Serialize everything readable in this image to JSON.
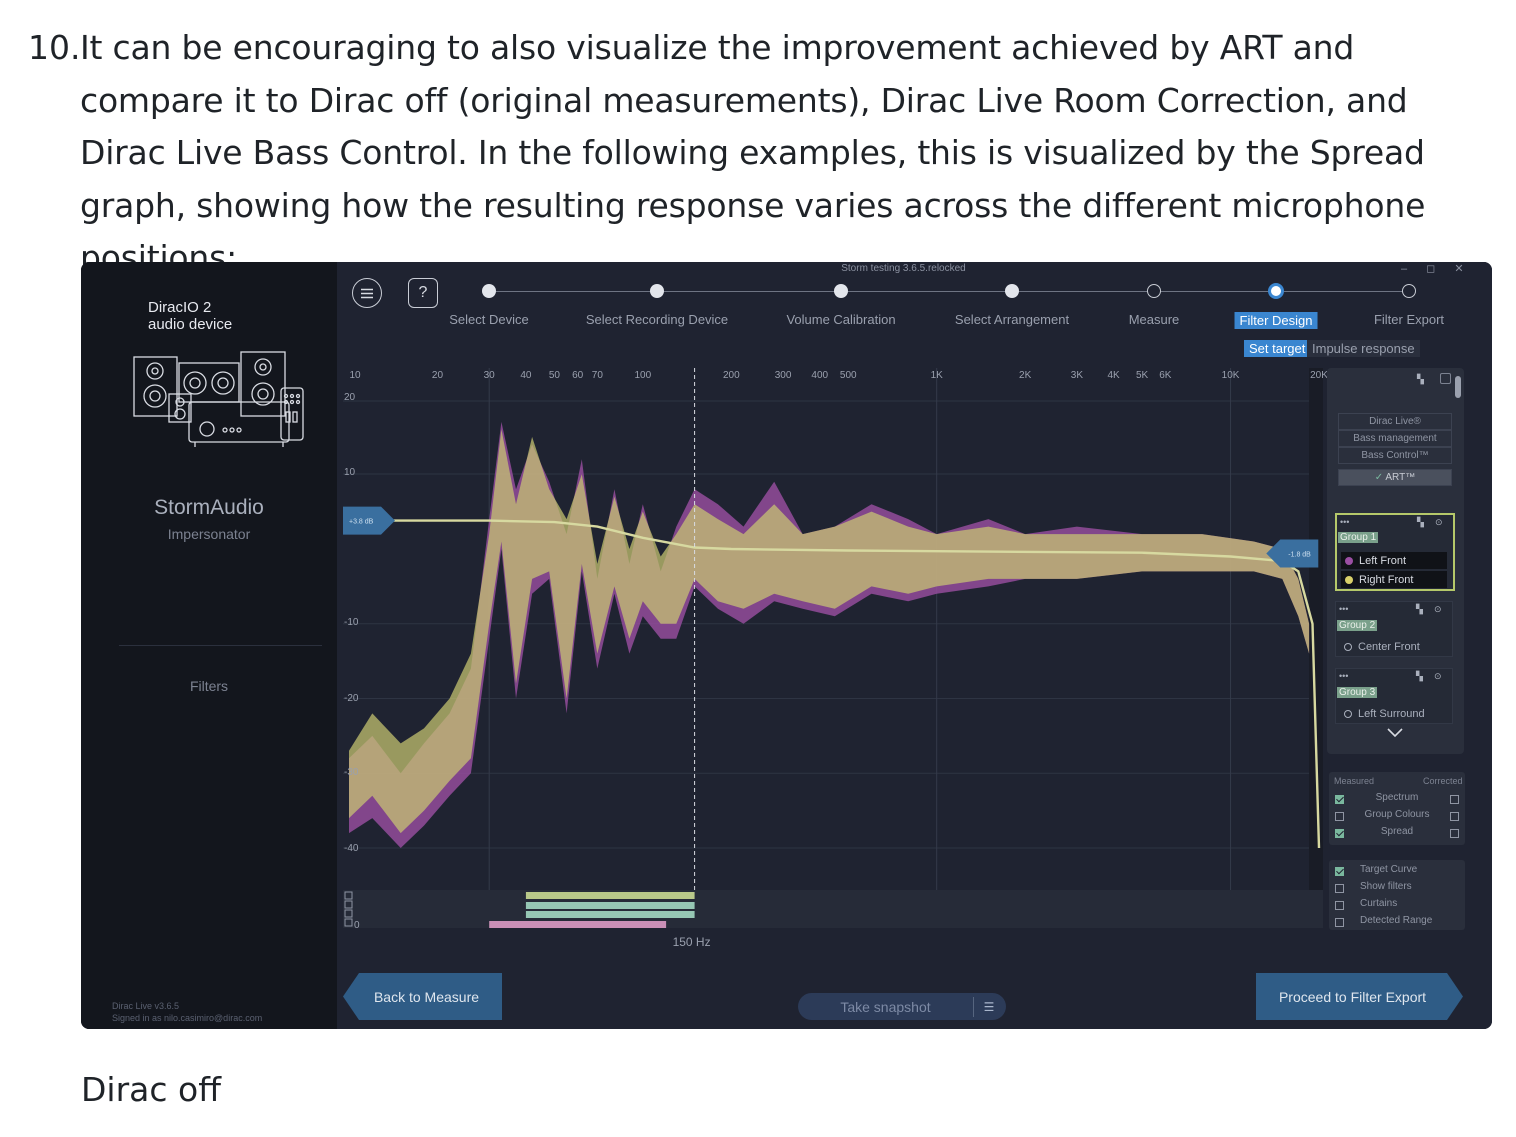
{
  "article": {
    "item_number": "10.",
    "paragraph": "It can be encouraging to also visualize the improvement achieved by ART and compare it to Dirac off (original measurements), Dirac Live Room Correction, and Dirac Live Bass Control. In the following examples, this is visualized by the Spread graph, showing how the resulting response varies across the different microphone positions:",
    "caption": "Dirac off"
  },
  "app": {
    "window_title": "Storm testing 3.6.5.relocked",
    "window_controls": "– ◻ ✕",
    "device_line1": "DiracIO 2",
    "device_line2": "audio device",
    "product_name": "StormAudio",
    "product_sub": "Impersonator",
    "filters_link": "Filters",
    "version_line1": "Dirac Live v3.6.5",
    "version_line2": "Signed in as nilo.casimiro@dirac.com",
    "menu_icon": "hamburger-menu-icon",
    "help_label": "?"
  },
  "wizard": {
    "steps": [
      {
        "label": "Select Device",
        "state": "done"
      },
      {
        "label": "Select Recording Device",
        "state": "done"
      },
      {
        "label": "Volume Calibration",
        "state": "done"
      },
      {
        "label": "Select Arrangement",
        "state": "done"
      },
      {
        "label": "Measure",
        "state": "todo"
      },
      {
        "label": "Filter Design",
        "state": "active"
      },
      {
        "label": "Filter Export",
        "state": "todo"
      }
    ],
    "subtabs": [
      {
        "label": "Set target",
        "active": true
      },
      {
        "label": "Impulse response",
        "active": false
      }
    ]
  },
  "graph": {
    "freq_labels": [
      "10",
      "20",
      "30",
      "40",
      "50",
      "60",
      "70",
      "100",
      "200",
      "300",
      "400",
      "500",
      "1K",
      "2K",
      "3K",
      "4K",
      "5K",
      "6K",
      "10K",
      "20K"
    ],
    "db_labels": [
      "20",
      "10",
      "-10",
      "-20",
      "-30",
      "-40"
    ],
    "left_handle_label": "+3.8 dB",
    "right_handle_label": "-1.8 dB",
    "marker_label": "150 Hz",
    "marker_freq": 150,
    "range_rows": [
      "0"
    ],
    "series": [
      {
        "name": "Left Front",
        "color": "#9b4fa3"
      },
      {
        "name": "Right Front",
        "color": "#c9c872"
      }
    ]
  },
  "chart_data": {
    "type": "area",
    "title": "",
    "xlabel": "",
    "ylabel": "",
    "xscale": "log",
    "xlim": [
      10,
      22000
    ],
    "ylim": [
      -45,
      22
    ],
    "target_curve": {
      "x": [
        10,
        15,
        30,
        50,
        70,
        100,
        150,
        200,
        300,
        500,
        1000,
        5000,
        10000,
        15000,
        17000,
        19000,
        20000
      ],
      "y": [
        3.8,
        3.8,
        3.8,
        3.6,
        3.0,
        1.5,
        0.2,
        0.0,
        -0.1,
        -0.2,
        -0.3,
        -0.5,
        -1.0,
        -1.6,
        -3.0,
        -10.0,
        -40.0
      ]
    },
    "series": [
      {
        "name": "Left Front",
        "x": [
          10,
          12,
          15,
          18,
          22,
          26,
          30,
          33,
          37,
          42,
          48,
          55,
          62,
          70,
          80,
          90,
          100,
          115,
          130,
          150,
          180,
          220,
          280,
          350,
          450,
          600,
          800,
          1000,
          1500,
          2000,
          3000,
          5000,
          8000,
          12000,
          15000,
          17000,
          18500
        ],
        "upper": [
          -28,
          -25,
          -30,
          -26,
          -22,
          -16,
          4,
          17,
          8,
          14,
          9,
          2,
          12,
          -4,
          8,
          -2,
          6,
          -3,
          3,
          8,
          6,
          3,
          9,
          2,
          3,
          6,
          4,
          2,
          4,
          2,
          3,
          2,
          2,
          1,
          0,
          -4,
          -10
        ],
        "lower": [
          -38,
          -36,
          -40,
          -37,
          -33,
          -30,
          -12,
          0,
          -20,
          -6,
          -4,
          -22,
          -3,
          -16,
          -6,
          -14,
          -9,
          -12,
          -12,
          -5,
          -8,
          -10,
          -7,
          -8,
          -9,
          -6,
          -7,
          -6,
          -5,
          -4,
          -4,
          -3,
          -3,
          -3,
          -4,
          -9,
          -14
        ]
      },
      {
        "name": "Right Front",
        "x": [
          10,
          12,
          15,
          18,
          22,
          26,
          30,
          33,
          37,
          42,
          48,
          55,
          62,
          70,
          80,
          90,
          100,
          115,
          130,
          150,
          180,
          220,
          280,
          350,
          450,
          600,
          800,
          1000,
          1500,
          2000,
          3000,
          5000,
          8000,
          12000,
          15000,
          17000,
          18500
        ],
        "upper": [
          -27,
          -22,
          -26,
          -24,
          -20,
          -14,
          2,
          16,
          6,
          15,
          8,
          4,
          10,
          -2,
          7,
          0,
          5,
          -1,
          2,
          6,
          4,
          2,
          6,
          2,
          3,
          5,
          3,
          2,
          3,
          2,
          2,
          2,
          2,
          1,
          0,
          -4,
          -10
        ],
        "lower": [
          -36,
          -33,
          -38,
          -35,
          -31,
          -28,
          -10,
          1,
          -18,
          -4,
          -3,
          -20,
          -2,
          -14,
          -5,
          -12,
          -7,
          -10,
          -10,
          -4,
          -7,
          -8,
          -6,
          -7,
          -8,
          -5,
          -6,
          -5,
          -4,
          -4,
          -4,
          -3,
          -3,
          -3,
          -4,
          -9,
          -14
        ]
      }
    ],
    "legend": "side panel",
    "grid": true
  },
  "side_panel": {
    "layers": [
      "Dirac Live®",
      "Bass management",
      "Bass Control™",
      "ART™"
    ],
    "groups": [
      {
        "tag": "Group 1",
        "channels": [
          {
            "name": "Left Front",
            "color": "#9b4fa3"
          },
          {
            "name": "Right Front",
            "color": "#d9d06a"
          }
        ]
      },
      {
        "tag": "Group 2",
        "channels": [
          {
            "name": "Center Front"
          }
        ]
      },
      {
        "tag": "Group 3",
        "channels": [
          {
            "name": "Left Surround"
          }
        ]
      }
    ],
    "view_header_measured": "Measured",
    "view_header_corrected": "Corrected",
    "view_rows": [
      {
        "label": "Spectrum",
        "measured": true,
        "corrected": false
      },
      {
        "label": "Group Colours",
        "measured": false,
        "corrected": false
      },
      {
        "label": "Spread",
        "measured": true,
        "corrected": false
      }
    ],
    "options": [
      {
        "label": "Target Curve",
        "checked": true
      },
      {
        "label": "Show filters",
        "checked": false
      },
      {
        "label": "Curtains",
        "checked": false
      },
      {
        "label": "Detected Range",
        "checked": false
      }
    ]
  },
  "footer": {
    "back_button": "Back to Measure",
    "proceed_button": "Proceed to Filter Export",
    "snapshot_placeholder": "Take snapshot"
  },
  "colors": {
    "accent": "#3a86d0",
    "left_front": "#9b4fa3",
    "right_front": "#c9c872",
    "target_curve": "#d7d9a0",
    "range_pink": "#c98fb6",
    "range_green": "#b9c98a",
    "range_teal": "#96c7b4"
  }
}
